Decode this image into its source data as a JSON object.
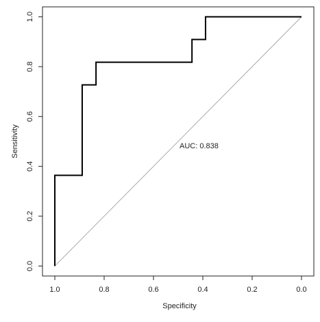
{
  "chart_data": {
    "type": "line",
    "x_label": "Specificity",
    "y_label": "Sensitivity",
    "annotation": "AUC: 0.838",
    "x": [
      1.0,
      1.0,
      0.889,
      0.889,
      0.833,
      0.833,
      0.444,
      0.444,
      0.389,
      0.389,
      0.0
    ],
    "series": [
      {
        "color": "#000000",
        "values": [
          0.0,
          0.364,
          0.364,
          0.727,
          0.727,
          0.818,
          0.818,
          0.909,
          0.909,
          1.0,
          1.0
        ]
      }
    ],
    "xlim": [
      1.05,
      -0.05
    ],
    "ylim": [
      -0.04,
      1.04
    ],
    "xticks": [
      {
        "value": 1,
        "label": "1.0"
      },
      0.8,
      0.6,
      0.4,
      0.2,
      {
        "value": 0,
        "label": "0.0"
      }
    ],
    "yticks": [
      {
        "value": 0,
        "label": "0.0"
      },
      0.2,
      0.4,
      0.6,
      0.8,
      {
        "value": 1,
        "label": "1.0"
      }
    ]
  }
}
